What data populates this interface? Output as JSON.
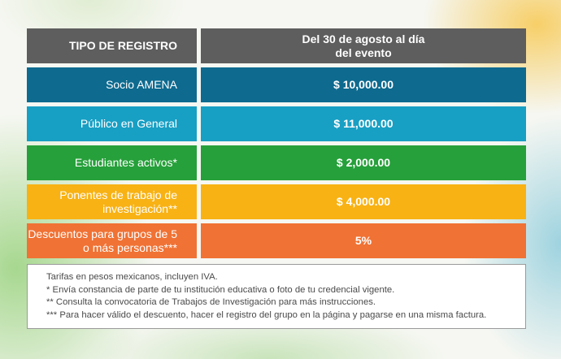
{
  "table": {
    "header": {
      "type_label": "TIPO DE REGISTRO",
      "period_label": "Del  30 de agosto al día del evento",
      "color": "#5e5e5e"
    },
    "rows": [
      {
        "type": "Socio AMENA",
        "price": "$ 10,000.00",
        "color": "#0e6a8f"
      },
      {
        "type": "Público en General",
        "price": "$ 11,000.00",
        "color": "#189fc4"
      },
      {
        "type": "Estudiantes activos*",
        "price": "$ 2,000.00",
        "color": "#26a03a"
      },
      {
        "type": "Ponentes de trabajo de investigación**",
        "price": "$ 4,000.00",
        "color": "#f8b214"
      },
      {
        "type": "Descuentos para grupos de 5 o más personas***",
        "price": "5%",
        "color": "#f07234"
      }
    ]
  },
  "notes": [
    "Tarifas en pesos mexicanos, incluyen IVA.",
    "* Envía constancia de parte de tu institución educativa o foto de tu credencial vigente.",
    "** Consulta la convocatoria de Trabajos de Investigación para más instrucciones.",
    "*** Para hacer válido el descuento, hacer el registro del grupo en la página y pagarse en una misma factura."
  ]
}
